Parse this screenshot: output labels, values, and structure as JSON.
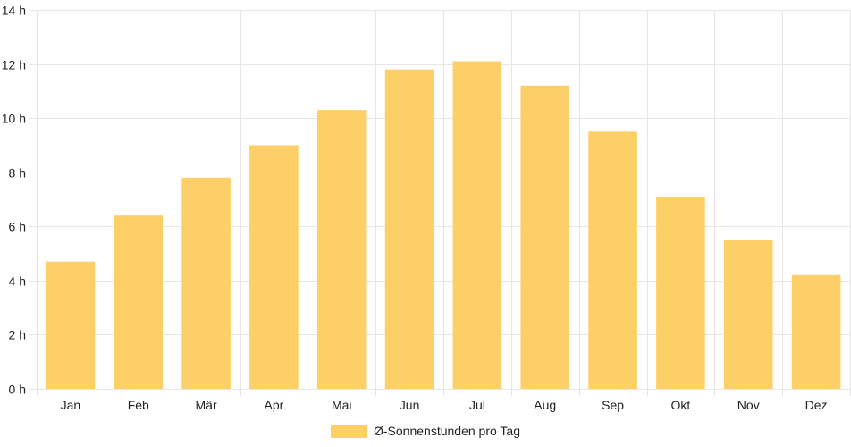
{
  "chart_data": {
    "type": "bar",
    "categories": [
      "Jan",
      "Feb",
      "Mär",
      "Apr",
      "Mai",
      "Jun",
      "Jul",
      "Aug",
      "Sep",
      "Okt",
      "Nov",
      "Dez"
    ],
    "series": [
      {
        "name": "Ø-Sonnenstunden pro Tag",
        "values": [
          4.7,
          6.4,
          7.8,
          9.0,
          10.3,
          11.8,
          12.1,
          11.2,
          9.5,
          7.1,
          5.5,
          4.2
        ],
        "color": "#fdd067"
      }
    ],
    "ylim": [
      0,
      14
    ],
    "ytick_step": 2,
    "y_tick_suffix": " h",
    "grid": true,
    "grid_color": "#e6e6e6",
    "legend_position": "bottom"
  }
}
